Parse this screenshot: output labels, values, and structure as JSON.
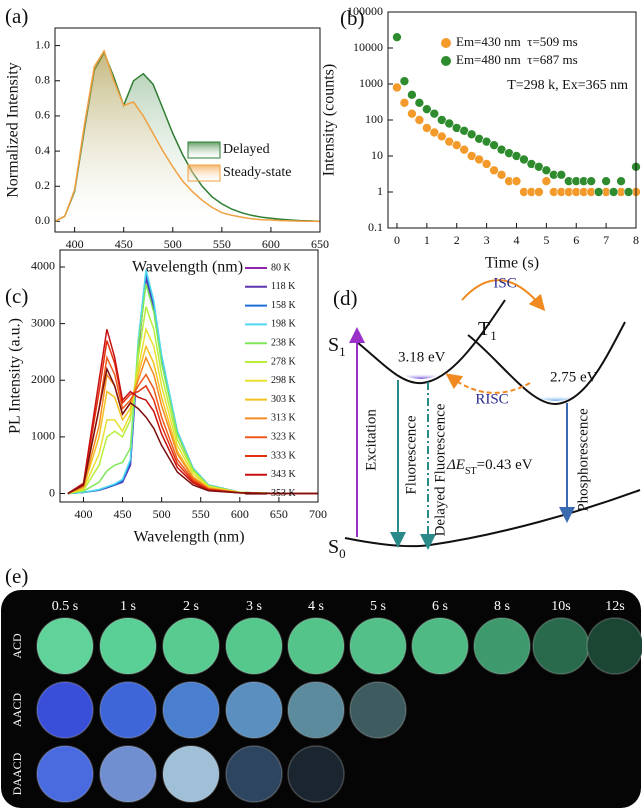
{
  "chart_data": [
    {
      "panel_label": "(a)",
      "type": "line",
      "x_label": "Wavelength (nm)",
      "y_label": "Normalized Intensity",
      "x": [
        380,
        390,
        400,
        410,
        420,
        430,
        440,
        450,
        460,
        470,
        480,
        490,
        500,
        510,
        520,
        530,
        540,
        550,
        560,
        570,
        580,
        590,
        600,
        610,
        620,
        630,
        640,
        650
      ],
      "series": [
        {
          "name": "Delayed",
          "color": "#2e7d32",
          "values": [
            0,
            0.03,
            0.17,
            0.52,
            0.86,
            0.96,
            0.82,
            0.66,
            0.8,
            0.84,
            0.78,
            0.64,
            0.5,
            0.38,
            0.28,
            0.2,
            0.14,
            0.1,
            0.07,
            0.05,
            0.035,
            0.025,
            0.018,
            0.012,
            0.008,
            0.005,
            0.003,
            0
          ]
        },
        {
          "name": "Steady-state",
          "color": "#f0a040",
          "values": [
            0,
            0.03,
            0.18,
            0.55,
            0.88,
            0.97,
            0.8,
            0.66,
            0.68,
            0.6,
            0.5,
            0.4,
            0.31,
            0.23,
            0.17,
            0.12,
            0.08,
            0.05,
            0.035,
            0.025,
            0.015,
            0.01,
            0.008,
            0.005,
            0.003,
            0.002,
            0.001,
            0
          ]
        }
      ],
      "xlim": [
        380,
        650
      ],
      "ylim": [
        -0.06,
        1.1
      ],
      "xticks": [
        400,
        450,
        500,
        550,
        600,
        650
      ],
      "yticks": [
        {
          "value": 0,
          "label": "0.0"
        },
        0.2,
        0.4,
        0.6,
        0.8,
        {
          "value": 1,
          "label": "1.0"
        }
      ],
      "legend": "center right",
      "fill": true
    },
    {
      "panel_label": "(b)",
      "type": "scatter",
      "x_label": "Time (s)",
      "y_label": "Intensity (counts)",
      "series": [
        {
          "name": "Em=430 nm  τ=509 ms",
          "color": "#f39a2a",
          "x": [
            0,
            0.25,
            0.5,
            0.75,
            1,
            1.25,
            1.5,
            1.75,
            2,
            2.25,
            2.5,
            2.75,
            3,
            3.25,
            3.5,
            3.75,
            4,
            4.25,
            4.5,
            4.75,
            5,
            5.25,
            5.5,
            5.75,
            6,
            6.25,
            6.5,
            6.75,
            7,
            7.25,
            7.5,
            7.75,
            8
          ],
          "values": [
            800,
            300,
            150,
            100,
            60,
            45,
            35,
            25,
            20,
            15,
            10,
            8,
            6,
            4,
            3,
            2,
            2,
            1,
            1,
            1,
            2,
            1,
            1,
            1,
            1,
            1,
            1,
            1,
            1,
            1,
            1,
            1,
            1
          ]
        },
        {
          "name": "Em=480 nm  τ=687 ms",
          "color": "#2e8b2e",
          "x": [
            0,
            0.25,
            0.5,
            0.75,
            1,
            1.25,
            1.5,
            1.75,
            2,
            2.25,
            2.5,
            2.75,
            3,
            3.25,
            3.5,
            3.75,
            4,
            4.25,
            4.5,
            4.75,
            5,
            5.25,
            5.5,
            5.75,
            6,
            6.25,
            6.5,
            6.75,
            7,
            7.25,
            7.5,
            7.75,
            8
          ],
          "values": [
            20000,
            1200,
            500,
            300,
            200,
            150,
            100,
            80,
            60,
            50,
            40,
            30,
            25,
            20,
            15,
            12,
            10,
            8,
            6,
            5,
            4,
            3,
            3,
            2,
            2,
            2,
            2,
            1,
            2,
            1,
            2,
            1,
            5
          ]
        }
      ],
      "xlim": [
        -0.3,
        8
      ],
      "ylim": [
        0.1,
        100000
      ],
      "log_y": true,
      "xticks": [
        0,
        1,
        2,
        3,
        4,
        5,
        6,
        7,
        8
      ],
      "yticks": [
        0.1,
        1,
        10,
        100,
        1000,
        10000,
        100000
      ],
      "legend": "upper right",
      "annotation": "T=298 k, Ex=365 nm"
    },
    {
      "panel_label": "(c)",
      "type": "line",
      "x_label": "Wavelength (nm)",
      "y_label": "PL Intensity (a.u.)",
      "x": [
        380,
        400,
        420,
        430,
        440,
        450,
        460,
        470,
        480,
        490,
        500,
        520,
        540,
        560,
        600,
        650,
        700
      ],
      "series": [
        {
          "name": "80 K",
          "color": "#8e24aa",
          "values": [
            0,
            20,
            60,
            100,
            150,
            200,
            500,
            2500,
            3850,
            3300,
            2400,
            1100,
            450,
            150,
            20,
            0,
            0
          ]
        },
        {
          "name": "118 K",
          "color": "#5e35b1",
          "values": [
            0,
            20,
            60,
            100,
            150,
            200,
            500,
            2500,
            3800,
            3250,
            2350,
            1050,
            430,
            140,
            20,
            0,
            0
          ]
        },
        {
          "name": "158 K",
          "color": "#1e6fd9",
          "values": [
            0,
            20,
            60,
            110,
            150,
            220,
            550,
            2600,
            3900,
            3350,
            2400,
            1100,
            450,
            150,
            20,
            0,
            0
          ]
        },
        {
          "name": "198 K",
          "color": "#4fd8f0",
          "values": [
            0,
            20,
            70,
            120,
            170,
            250,
            600,
            2700,
            3950,
            3400,
            2450,
            1100,
            450,
            150,
            20,
            0,
            0
          ]
        },
        {
          "name": "238 K",
          "color": "#7ee85a",
          "values": [
            0,
            40,
            200,
            400,
            500,
            550,
            800,
            2600,
            3700,
            3200,
            2300,
            1050,
            430,
            140,
            20,
            0,
            0
          ]
        },
        {
          "name": "278 K",
          "color": "#b8ee3a",
          "values": [
            0,
            60,
            500,
            1000,
            1100,
            1000,
            1300,
            2400,
            3300,
            2900,
            2100,
            950,
            400,
            130,
            20,
            0,
            0
          ]
        },
        {
          "name": "298 K",
          "color": "#e8e030",
          "values": [
            0,
            80,
            700,
            1300,
            1300,
            1100,
            1400,
            2200,
            2900,
            2600,
            1900,
            850,
            350,
            120,
            20,
            0,
            0
          ]
        },
        {
          "name": "303 K",
          "color": "#f5c020",
          "values": [
            0,
            100,
            1000,
            1800,
            1700,
            1300,
            1500,
            2100,
            2600,
            2300,
            1700,
            750,
            300,
            100,
            15,
            0,
            0
          ]
        },
        {
          "name": "313 K",
          "color": "#f58a20",
          "values": [
            0,
            120,
            1200,
            2100,
            1900,
            1400,
            1600,
            2000,
            2400,
            2100,
            1550,
            700,
            280,
            90,
            15,
            0,
            0
          ]
        },
        {
          "name": "323 K",
          "color": "#ef5a1a",
          "values": [
            0,
            140,
            1500,
            2400,
            2100,
            1500,
            1650,
            1900,
            2100,
            1850,
            1350,
            600,
            250,
            80,
            15,
            0,
            0
          ]
        },
        {
          "name": "333 K",
          "color": "#e03010",
          "values": [
            0,
            160,
            1800,
            2700,
            2300,
            1600,
            1750,
            1800,
            1900,
            1650,
            1200,
            530,
            220,
            70,
            10,
            0,
            0
          ]
        },
        {
          "name": "343 K",
          "color": "#c81010",
          "values": [
            0,
            180,
            2000,
            2900,
            2400,
            1650,
            1800,
            1700,
            1650,
            1450,
            1050,
            460,
            190,
            60,
            10,
            0,
            0
          ]
        },
        {
          "name": "353 K",
          "color": "#7a1010",
          "values": [
            0,
            150,
            1500,
            2200,
            1900,
            1400,
            1600,
            1500,
            1350,
            1150,
            850,
            380,
            150,
            50,
            10,
            0,
            0
          ]
        }
      ],
      "xlim": [
        370,
        700
      ],
      "ylim": [
        -150,
        4300
      ],
      "xticks": [
        400,
        450,
        500,
        550,
        600,
        650,
        700
      ],
      "yticks": [
        0,
        1000,
        2000,
        3000,
        4000
      ],
      "legend": "upper right"
    }
  ],
  "diagram": {
    "panel_label": "(d)",
    "s1": {
      "main": "S",
      "sub": "1"
    },
    "t1": {
      "main": "T",
      "sub": "1"
    },
    "s0": {
      "main": "S",
      "sub": "0"
    },
    "isc": "ISC",
    "risc": "RISC",
    "s1_energy": "3.18 eV",
    "t1_energy": "2.75 eV",
    "gap": {
      "main": "ΔE",
      "sub": "ST",
      "rest": "=0.43 eV"
    },
    "excitation": "Excitation",
    "fluorescence": "Fluorescence",
    "delayed_fluorescence": "Delayed Fluorescence",
    "phosphorescence": "Phosphorescence"
  },
  "photos": {
    "panel_label": "(e)",
    "times": [
      "0.5 s",
      "1 s",
      "2 s",
      "3 s",
      "4 s",
      "5 s",
      "6 s",
      "8 s",
      "10s",
      "12s"
    ],
    "rows": [
      {
        "name": "ACD",
        "colors": [
          "#5fd39a",
          "#5ad096",
          "#58cc90",
          "#55c88c",
          "#55c48a",
          "#52c088",
          "#4fba84",
          "#3e9a6c",
          "#2a6a4c",
          "#1c4634"
        ]
      },
      {
        "name": "AACD",
        "colors": [
          "#3a4fd8",
          "#3f66d8",
          "#4a7fd0",
          "#5a8fc0",
          "#5b8b9c",
          "#3e5c60"
        ]
      },
      {
        "name": "DAACD",
        "colors": [
          "#4a6ae0",
          "#6f8fd0",
          "#a0c0d8",
          "#2e4560",
          "#1a2530"
        ]
      }
    ]
  }
}
